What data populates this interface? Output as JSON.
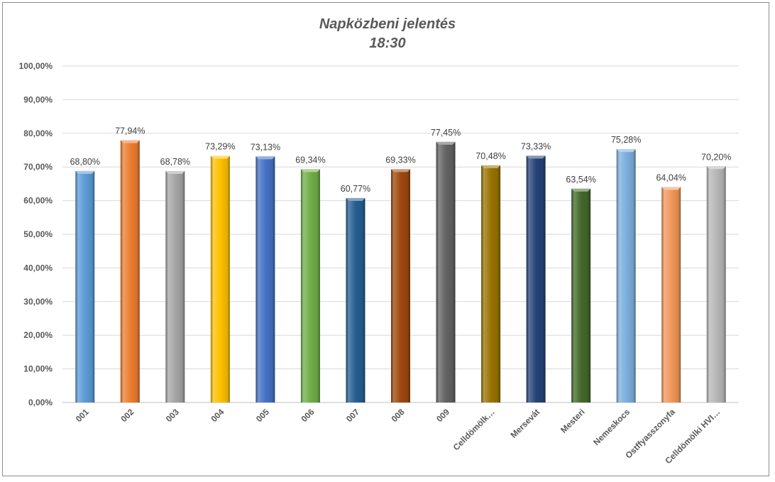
{
  "chart_data": {
    "type": "bar",
    "title": "Napközbeni jelentés",
    "subtitle": "18:30",
    "xlabel": "",
    "ylabel": "",
    "ylim": [
      0,
      100
    ],
    "ytick_step": 10,
    "ytick_labels": [
      "0,00%",
      "10,00%",
      "20,00%",
      "30,00%",
      "40,00%",
      "50,00%",
      "60,00%",
      "70,00%",
      "80,00%",
      "90,00%",
      "100,00%"
    ],
    "grid": true,
    "legend": "none",
    "categories": [
      "001",
      "002",
      "003",
      "004",
      "005",
      "006",
      "007",
      "008",
      "009",
      "Celldömölk…",
      "Mersevát",
      "Mesteri",
      "Nemeskocs",
      "Ostffyasszonyfa",
      "Celldömölki HVI…"
    ],
    "values": [
      68.8,
      77.94,
      68.78,
      73.29,
      73.13,
      69.34,
      60.77,
      69.33,
      77.45,
      70.48,
      73.33,
      63.54,
      75.28,
      64.04,
      70.2
    ],
    "value_labels": [
      "68,80%",
      "77,94%",
      "68,78%",
      "73,29%",
      "73,13%",
      "69,34%",
      "60,77%",
      "69,33%",
      "77,45%",
      "70,48%",
      "73,33%",
      "63,54%",
      "75,28%",
      "64,04%",
      "70,20%"
    ],
    "colors": [
      "#5b9bd5",
      "#ed7d31",
      "#a5a5a5",
      "#ffc000",
      "#4472c4",
      "#70ad47",
      "#255e91",
      "#9e480e",
      "#636363",
      "#997300",
      "#264478",
      "#43682b",
      "#7cafdd",
      "#f1975a",
      "#b7b7b7"
    ]
  }
}
